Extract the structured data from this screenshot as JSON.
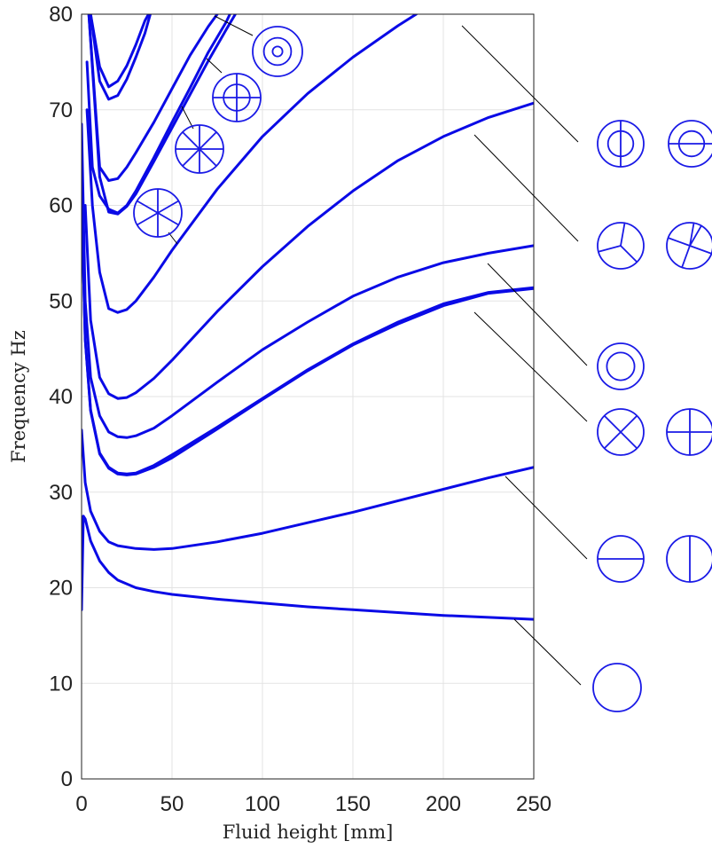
{
  "chart_data": {
    "type": "line",
    "title": "",
    "xlabel": "Fluid height [mm]",
    "ylabel": "Frequency Hz",
    "xlim": [
      0,
      250
    ],
    "ylim": [
      0,
      80
    ],
    "xticks": [
      0,
      50,
      100,
      150,
      200,
      250
    ],
    "yticks": [
      0,
      10,
      20,
      30,
      40,
      50,
      60,
      70,
      80
    ],
    "grid": true,
    "colors": {
      "series": "#0a0ae6",
      "icon": "#1a1ae6",
      "leader": "#000000"
    },
    "series": [
      {
        "mode": "axisymmetric-0",
        "points": [
          [
            0,
            17.7
          ],
          [
            1,
            27.5
          ],
          [
            2,
            27.2
          ],
          [
            5,
            24.9
          ],
          [
            10,
            22.8
          ],
          [
            15,
            21.6
          ],
          [
            20,
            20.8
          ],
          [
            30,
            20.0
          ],
          [
            40,
            19.6
          ],
          [
            50,
            19.3
          ],
          [
            75,
            18.8
          ],
          [
            100,
            18.4
          ],
          [
            125,
            18.0
          ],
          [
            150,
            17.7
          ],
          [
            175,
            17.4
          ],
          [
            200,
            17.1
          ],
          [
            225,
            16.9
          ],
          [
            250,
            16.7
          ]
        ]
      },
      {
        "mode": "1-nodal-diameter",
        "points": [
          [
            0,
            36.5
          ],
          [
            2,
            31.0
          ],
          [
            5,
            28.0
          ],
          [
            10,
            25.9
          ],
          [
            15,
            24.8
          ],
          [
            20,
            24.4
          ],
          [
            30,
            24.1
          ],
          [
            40,
            24.0
          ],
          [
            50,
            24.1
          ],
          [
            75,
            24.8
          ],
          [
            100,
            25.7
          ],
          [
            125,
            26.8
          ],
          [
            150,
            27.9
          ],
          [
            175,
            29.1
          ],
          [
            200,
            30.3
          ],
          [
            225,
            31.5
          ],
          [
            250,
            32.6
          ]
        ]
      },
      {
        "mode": "2-nodal-diameters",
        "points": [
          [
            0,
            60.5
          ],
          [
            2,
            46.0
          ],
          [
            5,
            38.5
          ],
          [
            10,
            34.0
          ],
          [
            15,
            32.5
          ],
          [
            20,
            31.9
          ],
          [
            25,
            31.8
          ],
          [
            30,
            31.9
          ],
          [
            40,
            32.6
          ],
          [
            50,
            33.6
          ],
          [
            75,
            36.6
          ],
          [
            100,
            39.7
          ],
          [
            125,
            42.7
          ],
          [
            150,
            45.4
          ],
          [
            175,
            47.6
          ],
          [
            200,
            49.5
          ],
          [
            225,
            50.8
          ],
          [
            250,
            51.3
          ]
        ]
      },
      {
        "mode": "2-nodal-diameters-pair",
        "points": [
          [
            0,
            60.5
          ],
          [
            2,
            46.0
          ],
          [
            5,
            38.6
          ],
          [
            10,
            34.1
          ],
          [
            15,
            32.6
          ],
          [
            20,
            32.0
          ],
          [
            25,
            31.9
          ],
          [
            30,
            32.0
          ],
          [
            40,
            32.8
          ],
          [
            50,
            33.9
          ],
          [
            75,
            36.8
          ],
          [
            100,
            39.8
          ],
          [
            125,
            42.8
          ],
          [
            150,
            45.5
          ],
          [
            175,
            47.8
          ],
          [
            200,
            49.7
          ],
          [
            225,
            50.9
          ],
          [
            250,
            51.4
          ]
        ]
      },
      {
        "mode": "axisymmetric-1",
        "points": [
          [
            0,
            68.5
          ],
          [
            2,
            50.0
          ],
          [
            5,
            42.0
          ],
          [
            10,
            38.0
          ],
          [
            15,
            36.3
          ],
          [
            20,
            35.8
          ],
          [
            25,
            35.7
          ],
          [
            30,
            35.9
          ],
          [
            40,
            36.7
          ],
          [
            50,
            38.0
          ],
          [
            75,
            41.5
          ],
          [
            100,
            44.9
          ],
          [
            125,
            47.8
          ],
          [
            150,
            50.5
          ],
          [
            175,
            52.5
          ],
          [
            200,
            54.0
          ],
          [
            225,
            55.0
          ],
          [
            250,
            55.8
          ]
        ]
      },
      {
        "mode": "3-nodal-diameters",
        "points": [
          [
            2,
            60.0
          ],
          [
            5,
            48.0
          ],
          [
            10,
            42.0
          ],
          [
            15,
            40.3
          ],
          [
            20,
            39.8
          ],
          [
            25,
            39.9
          ],
          [
            30,
            40.4
          ],
          [
            40,
            41.9
          ],
          [
            50,
            43.8
          ],
          [
            75,
            48.9
          ],
          [
            100,
            53.6
          ],
          [
            125,
            57.8
          ],
          [
            150,
            61.5
          ],
          [
            175,
            64.7
          ],
          [
            200,
            67.2
          ],
          [
            225,
            69.2
          ],
          [
            250,
            70.7
          ]
        ]
      },
      {
        "mode": "4-nodal-diameters",
        "points": [
          [
            3,
            70.0
          ],
          [
            6,
            60.0
          ],
          [
            10,
            53.0
          ],
          [
            15,
            49.2
          ],
          [
            20,
            48.8
          ],
          [
            25,
            49.1
          ],
          [
            30,
            50.0
          ],
          [
            40,
            52.5
          ],
          [
            50,
            55.3
          ],
          [
            75,
            61.7
          ],
          [
            100,
            67.2
          ],
          [
            125,
            71.7
          ],
          [
            150,
            75.5
          ],
          [
            175,
            78.8
          ],
          [
            185,
            80.0
          ]
        ]
      },
      {
        "mode": "1-nodal-diameter-1-nodal-circle",
        "points": [
          [
            4,
            80.0
          ],
          [
            7,
            72.0
          ],
          [
            10,
            64.0
          ],
          [
            15,
            62.6
          ],
          [
            20,
            62.8
          ],
          [
            25,
            64.0
          ],
          [
            30,
            65.5
          ],
          [
            40,
            68.7
          ],
          [
            50,
            72.2
          ],
          [
            60,
            75.7
          ],
          [
            70,
            78.7
          ],
          [
            75,
            80.0
          ]
        ]
      },
      {
        "mode": "1-nodal-diameter-1-nodal-circle-pair",
        "points": [
          [
            4,
            80.0
          ],
          [
            7,
            71.5
          ],
          [
            10,
            63.0
          ],
          [
            15,
            59.3
          ],
          [
            20,
            59.1
          ],
          [
            25,
            59.9
          ],
          [
            30,
            61.2
          ],
          [
            40,
            64.6
          ],
          [
            50,
            68.1
          ],
          [
            60,
            71.6
          ],
          [
            70,
            75.1
          ],
          [
            80,
            78.4
          ],
          [
            85,
            80.0
          ]
        ]
      },
      {
        "mode": "axisymmetric-2",
        "points": [
          [
            5,
            80.0
          ],
          [
            10,
            74.5
          ],
          [
            15,
            72.4
          ],
          [
            20,
            73.0
          ],
          [
            25,
            74.6
          ],
          [
            30,
            76.8
          ],
          [
            35,
            79.3
          ],
          [
            37,
            80.0
          ]
        ]
      },
      {
        "mode": "axisymmetric-2-pair",
        "points": [
          [
            5,
            80.0
          ],
          [
            10,
            73.0
          ],
          [
            15,
            71.1
          ],
          [
            20,
            71.5
          ],
          [
            25,
            73.2
          ],
          [
            30,
            75.5
          ],
          [
            35,
            78.0
          ],
          [
            38,
            80.0
          ]
        ]
      },
      {
        "mode": "5-nodal-diameters",
        "points": [
          [
            3,
            75.0
          ],
          [
            6,
            64.0
          ],
          [
            10,
            61.0
          ],
          [
            15,
            59.6
          ],
          [
            20,
            59.2
          ],
          [
            25,
            60.0
          ],
          [
            30,
            61.5
          ],
          [
            40,
            65.0
          ],
          [
            50,
            68.7
          ],
          [
            60,
            72.3
          ],
          [
            70,
            76.0
          ],
          [
            80,
            79.2
          ],
          [
            82,
            80.0
          ]
        ]
      }
    ],
    "legend_icons": [
      {
        "name": "concentric-circles-mode-icon",
        "kind": "circles"
      },
      {
        "name": "cross-circle-mode-icon",
        "kind": "plus"
      },
      {
        "name": "eight-spoke-mode-icon",
        "kind": "spokes8"
      },
      {
        "name": "six-spoke-mode-icon",
        "kind": "spokes6"
      },
      {
        "name": "vertical-line-ring-mode-icon",
        "kind": "vline-ring"
      },
      {
        "name": "horizontal-line-ring-mode-icon",
        "kind": "hline-ring"
      },
      {
        "name": "three-spoke-mode-icon",
        "kind": "spokes3"
      },
      {
        "name": "three-spoke-rotated-mode-icon",
        "kind": "spokes3r"
      },
      {
        "name": "ring-mode-icon",
        "kind": "ring"
      },
      {
        "name": "x-cross-mode-icon",
        "kind": "xcross"
      },
      {
        "name": "plus-cross-mode-icon",
        "kind": "plus"
      },
      {
        "name": "horizontal-diameter-mode-icon",
        "kind": "hline"
      },
      {
        "name": "vertical-diameter-mode-icon",
        "kind": "vline"
      },
      {
        "name": "plain-circle-mode-icon",
        "kind": "plain"
      }
    ]
  }
}
